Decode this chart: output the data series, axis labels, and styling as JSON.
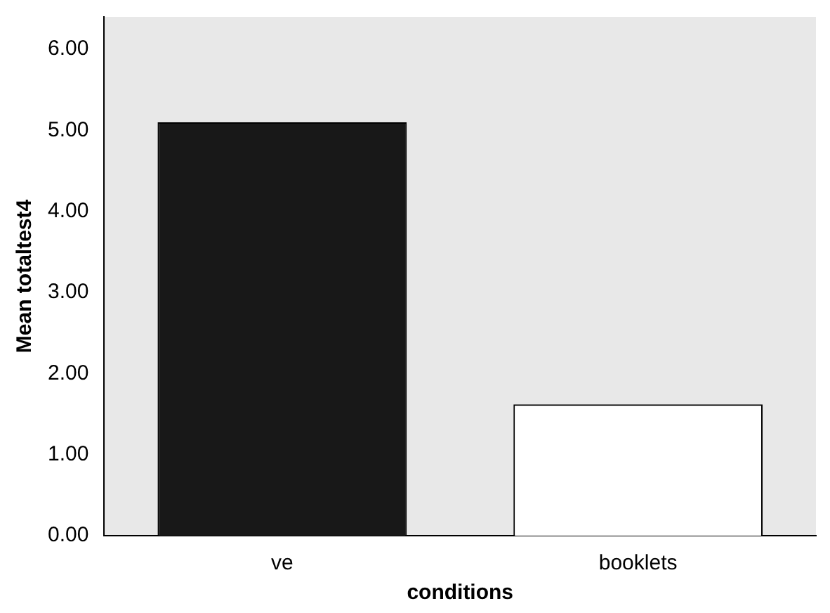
{
  "chart_data": {
    "type": "bar",
    "xlabel": "conditions",
    "ylabel": "Mean totaltest4",
    "categories": [
      "ve",
      "booklets"
    ],
    "values": [
      5.1,
      1.62
    ],
    "colors": [
      "#181818",
      "#ffffff"
    ],
    "ylim": [
      0,
      6.4
    ],
    "yticks": [
      {
        "value": 0,
        "label": "0.00"
      },
      {
        "value": 1,
        "label": "1.00"
      },
      {
        "value": 2,
        "label": "2.00"
      },
      {
        "value": 3,
        "label": "3.00"
      },
      {
        "value": 4,
        "label": "4.00"
      },
      {
        "value": 5,
        "label": "5.00"
      },
      {
        "value": 6,
        "label": "6.00"
      }
    ],
    "grid": false,
    "legend": false
  }
}
